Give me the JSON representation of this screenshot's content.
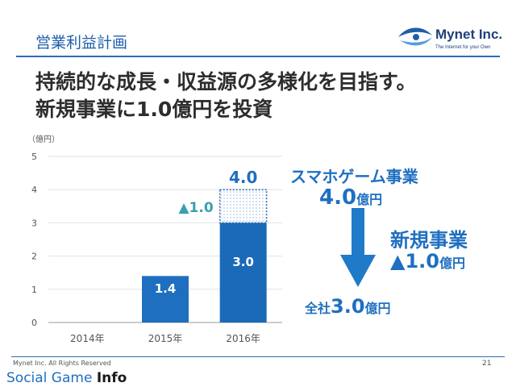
{
  "header": {
    "section_title": "営業利益計画",
    "logo_name": "Mynet Inc.",
    "logo_tagline": "The Internet for your Own",
    "headline_1": "持続的な成長・収益源の多様化を目指す。",
    "headline_2": "新規事業に1.0億円を投資"
  },
  "chart_data": {
    "type": "bar",
    "unit_label": "（億円）",
    "categories": [
      "2014年",
      "2015年",
      "2016年"
    ],
    "series": [
      {
        "values": [
          0,
          1.4,
          3.0
        ],
        "labels": [
          "",
          "1.4",
          "3.0"
        ]
      },
      {
        "values": [
          0,
          0,
          1.0
        ],
        "style": "dotted"
      }
    ],
    "total_label": "4.0",
    "delta_label": "▲1.0",
    "ylim": [
      0,
      5
    ],
    "yticks": [
      0,
      1,
      2,
      3,
      4,
      5
    ],
    "colors": {
      "bar_2015": "#1f6fc0",
      "bar_2016": "#1a6ab8",
      "dotted": "#2e6cb5",
      "delta": "#3aa0b0",
      "total": "#1f6fc0"
    }
  },
  "side": {
    "sp_label": "スマホゲーム事業",
    "sp_value": "4.0",
    "sp_unit": "億円",
    "new_label": "新規事業",
    "new_value": "▲1.0",
    "new_unit": "億円",
    "total_prefix": "全社",
    "total_value": "3.0",
    "total_unit": "億円"
  },
  "footer": {
    "copyright": "Mynet Inc. All Rights Reserved",
    "page": "21",
    "watermark_1": "Social Game ",
    "watermark_2": "Info"
  },
  "colors": {
    "accent": "#1f6fc0",
    "arrow": "#1f7ac8"
  }
}
